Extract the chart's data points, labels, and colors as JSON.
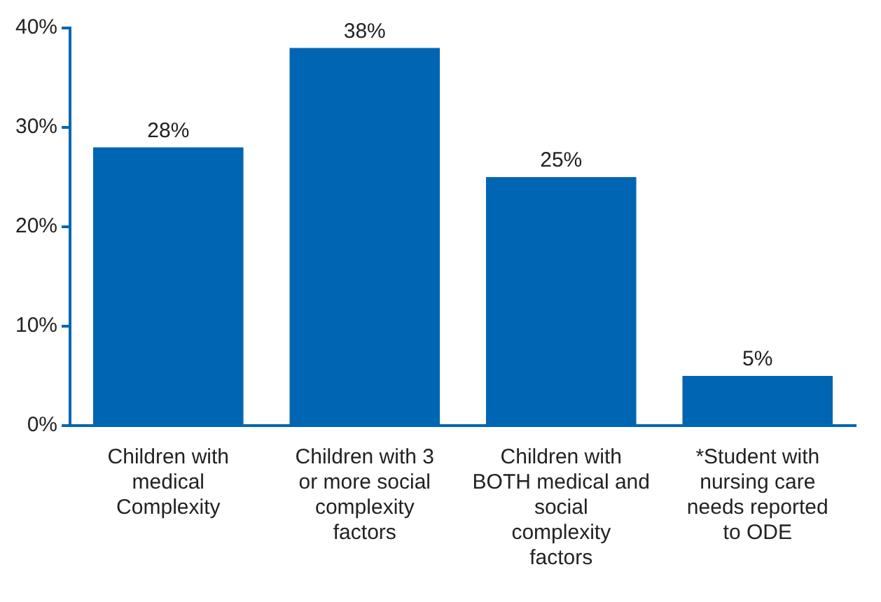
{
  "chart_data": {
    "type": "bar",
    "categories": [
      "Children with medical Complexity",
      "Children with 3 or more social complexity factors",
      "Children with BOTH medical and social complexity factors",
      "*Student with nursing care needs reported to ODE"
    ],
    "values": [
      28,
      38,
      25,
      5
    ],
    "value_labels": [
      "28%",
      "38%",
      "25%",
      "5%"
    ],
    "color": "#0066b3",
    "ylim": [
      0,
      40
    ],
    "yticks": [
      {
        "value": 0,
        "label": "0%"
      },
      {
        "value": 10,
        "label": "10%"
      },
      {
        "value": 20,
        "label": "20%"
      },
      {
        "value": 30,
        "label": "30%"
      },
      {
        "value": 40,
        "label": "40%"
      }
    ],
    "grid": false,
    "legend": false
  }
}
